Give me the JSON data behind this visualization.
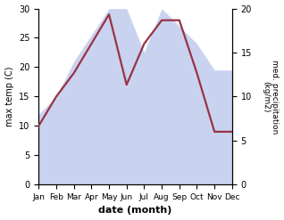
{
  "months": [
    "Jan",
    "Feb",
    "Mar",
    "Apr",
    "May",
    "Jun",
    "Jul",
    "Aug",
    "Sep",
    "Oct",
    "Nov",
    "Dec"
  ],
  "month_indices": [
    0,
    1,
    2,
    3,
    4,
    5,
    6,
    7,
    8,
    9,
    10,
    11
  ],
  "temp_max": [
    10.0,
    15.0,
    19.0,
    24.0,
    29.0,
    17.0,
    24.0,
    28.0,
    28.0,
    19.0,
    9.0,
    9.0
  ],
  "precipitation": [
    8.0,
    10.0,
    14.0,
    17.0,
    20.0,
    20.0,
    15.0,
    20.0,
    18.0,
    16.0,
    13.0,
    13.0
  ],
  "temp_ylim": [
    0,
    30
  ],
  "precip_ylim": [
    0,
    20
  ],
  "temp_color": "#993344",
  "precip_fill_color": "#c0ccee",
  "precip_fill_alpha": 0.85,
  "xlabel": "date (month)",
  "ylabel_left": "max temp (C)",
  "ylabel_right": "med. precipitation\n(kg/m2)",
  "left_yticks": [
    0,
    5,
    10,
    15,
    20,
    25,
    30
  ],
  "right_yticks": [
    0,
    5,
    10,
    15,
    20
  ],
  "temp_linewidth": 1.6
}
